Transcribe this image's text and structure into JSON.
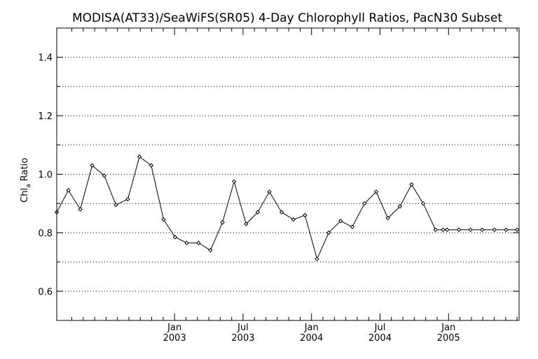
{
  "chart_data": {
    "type": "line",
    "title": "MODISA(AT33)/SeaWiFS(SR05) 4-Day Chlorophyll Ratios, PacN30 Subset",
    "xlabel": "",
    "ylabel_main": "Chl",
    "ylabel_sub": "a",
    "ylabel_rest": " Ratio",
    "ylim": [
      0.5,
      1.5
    ],
    "xlim": [
      2002.14,
      2005.515
    ],
    "y_ticks_major": [
      0.6,
      0.8,
      1.0,
      1.2,
      1.4
    ],
    "y_tick_labels": [
      "0.6",
      "0.8",
      "1.0",
      "1.2",
      "1.4"
    ],
    "y_ticks_minor": [
      0.7,
      0.9,
      1.1,
      1.3
    ],
    "x_ticks": [
      {
        "x": 2003.0,
        "month": "Jan",
        "year": "2003"
      },
      {
        "x": 2003.5,
        "month": "Jul",
        "year": "2003"
      },
      {
        "x": 2004.0,
        "month": "Jan",
        "year": "2004"
      },
      {
        "x": 2004.5,
        "month": "Jul",
        "year": "2004"
      },
      {
        "x": 2005.0,
        "month": "Jan",
        "year": "2005"
      }
    ],
    "x_minor_ticks": [
      2002.25,
      2002.333,
      2002.417,
      2002.5,
      2002.583,
      2002.667,
      2002.75,
      2002.833,
      2002.917,
      2003.083,
      2003.167,
      2003.25,
      2003.333,
      2003.417,
      2003.583,
      2003.667,
      2003.75,
      2003.833,
      2003.917,
      2004.083,
      2004.167,
      2004.25,
      2004.333,
      2004.417,
      2004.583,
      2004.667,
      2004.75,
      2004.833,
      2004.917,
      2005.083,
      2005.167,
      2005.25,
      2005.333,
      2005.417,
      2005.5
    ],
    "grid": "horizontal dotted",
    "series": [
      {
        "color": "#000000",
        "marker": "diamond",
        "x": [
          2002.14,
          2002.225,
          2002.312,
          2002.399,
          2002.487,
          2002.572,
          2002.659,
          2002.744,
          2002.83,
          2002.92,
          2003.004,
          2003.089,
          2003.175,
          2003.262,
          2003.35,
          2003.435,
          2003.522,
          2003.607,
          2003.692,
          2003.782,
          2003.867,
          2003.952,
          2004.04,
          2004.125,
          2004.212,
          2004.297,
          2004.387,
          2004.472,
          2004.557,
          2004.645,
          2004.73,
          2004.815,
          2004.905,
          2004.96,
          2004.99,
          2005.075,
          2005.16,
          2005.245,
          2005.335,
          2005.42,
          2005.5
        ],
        "y": [
          0.87,
          0.945,
          0.88,
          1.03,
          0.995,
          0.895,
          0.915,
          1.06,
          1.03,
          0.845,
          0.785,
          0.765,
          0.765,
          0.74,
          0.835,
          0.975,
          0.83,
          0.87,
          0.94,
          0.87,
          0.845,
          0.86,
          0.71,
          0.8,
          0.84,
          0.82,
          0.9,
          0.94,
          0.85,
          0.89,
          0.965,
          0.9,
          0.81,
          0.81,
          0.81,
          0.81,
          0.81,
          0.81,
          0.81,
          0.81,
          0.81
        ]
      }
    ]
  }
}
